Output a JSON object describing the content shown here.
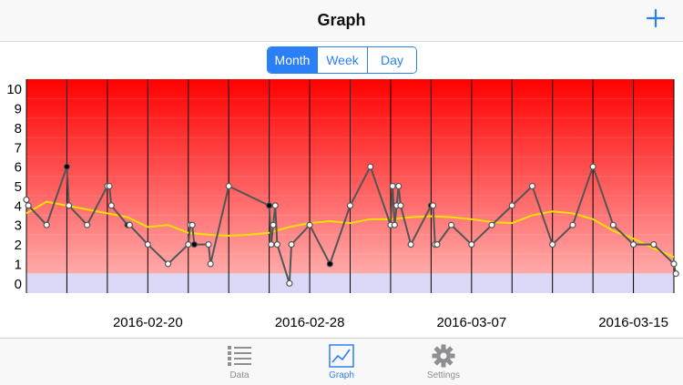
{
  "nav": {
    "title": "Graph"
  },
  "segments": {
    "month": "Month",
    "week": "Week",
    "day": "Day",
    "selected": "Month"
  },
  "tabs": {
    "data": "Data",
    "graph": "Graph",
    "settings": "Settings",
    "selected": "Graph"
  },
  "colors": {
    "accent": "#2a7ff7",
    "line": "#555555",
    "trend": "#f4e000",
    "band_low": "#d9d9f7",
    "band_top": "#ff0000",
    "band_bottom": "#ffaaaa"
  },
  "chart_data": {
    "type": "line",
    "title": "",
    "xlabel": "",
    "ylabel": "",
    "ylim": [
      0,
      10
    ],
    "yticks": [
      0,
      1,
      2,
      3,
      4,
      5,
      6,
      7,
      8,
      9,
      10
    ],
    "xlim": [
      "2016-02-14",
      "2016-03-17"
    ],
    "xticks": [
      "2016-02-20",
      "2016-02-28",
      "2016-03-07",
      "2016-03-15"
    ],
    "week_lines": [
      "2016-02-14",
      "2016-02-16",
      "2016-02-18",
      "2016-02-20",
      "2016-02-22",
      "2016-02-24",
      "2016-02-26",
      "2016-02-28",
      "2016-03-01",
      "2016-03-03",
      "2016-03-05",
      "2016-03-07",
      "2016-03-09",
      "2016-03-11",
      "2016-03-13",
      "2016-03-15",
      "2016-03-17"
    ],
    "series": [
      {
        "points": [
          {
            "x": "2016-02-14",
            "y": 4.3
          },
          {
            "x": "2016-02-14",
            "y": 4.0
          },
          {
            "x": "2016-02-15",
            "y": 3.0
          },
          {
            "x": "2016-02-16",
            "y": 6.0,
            "filled": true
          },
          {
            "x": "2016-02-16",
            "y": 4.0
          },
          {
            "x": "2016-02-17",
            "y": 3.0
          },
          {
            "x": "2016-02-18",
            "y": 5.0
          },
          {
            "x": "2016-02-18",
            "y": 5.0
          },
          {
            "x": "2016-02-18",
            "y": 4.0
          },
          {
            "x": "2016-02-19",
            "y": 3.0,
            "filled": true
          },
          {
            "x": "2016-02-19",
            "y": 3.0
          },
          {
            "x": "2016-02-20",
            "y": 2.0
          },
          {
            "x": "2016-02-21",
            "y": 1.0
          },
          {
            "x": "2016-02-22",
            "y": 2.0
          },
          {
            "x": "2016-02-22",
            "y": 3.0
          },
          {
            "x": "2016-02-22",
            "y": 3.0
          },
          {
            "x": "2016-02-22",
            "y": 2.0,
            "filled": true
          },
          {
            "x": "2016-02-23",
            "y": 2.0
          },
          {
            "x": "2016-02-23",
            "y": 1.0
          },
          {
            "x": "2016-02-24",
            "y": 5.0
          },
          {
            "x": "2016-02-26",
            "y": 4.0,
            "filled": true
          },
          {
            "x": "2016-02-26",
            "y": 2.0
          },
          {
            "x": "2016-02-26",
            "y": 3.0
          },
          {
            "x": "2016-02-26",
            "y": 4.0
          },
          {
            "x": "2016-02-26",
            "y": 2.0
          },
          {
            "x": "2016-02-27",
            "y": 0.0
          },
          {
            "x": "2016-02-27",
            "y": 2.0
          },
          {
            "x": "2016-02-28",
            "y": 3.0
          },
          {
            "x": "2016-02-29",
            "y": 1.0,
            "filled": true
          },
          {
            "x": "2016-03-01",
            "y": 4.0
          },
          {
            "x": "2016-03-02",
            "y": 6.0
          },
          {
            "x": "2016-03-03",
            "y": 3.0
          },
          {
            "x": "2016-03-03",
            "y": 5.0
          },
          {
            "x": "2016-03-03",
            "y": 3.0
          },
          {
            "x": "2016-03-03",
            "y": 4.0
          },
          {
            "x": "2016-03-03",
            "y": 5.0
          },
          {
            "x": "2016-03-03",
            "y": 4.0
          },
          {
            "x": "2016-03-04",
            "y": 2.0
          },
          {
            "x": "2016-03-05",
            "y": 4.0,
            "filled": true
          },
          {
            "x": "2016-03-05",
            "y": 4.0
          },
          {
            "x": "2016-03-05",
            "y": 2.0
          },
          {
            "x": "2016-03-05",
            "y": 2.0
          },
          {
            "x": "2016-03-06",
            "y": 3.0
          },
          {
            "x": "2016-03-07",
            "y": 2.0
          },
          {
            "x": "2016-03-08",
            "y": 3.0
          },
          {
            "x": "2016-03-09",
            "y": 4.0
          },
          {
            "x": "2016-03-10",
            "y": 5.0
          },
          {
            "x": "2016-03-11",
            "y": 2.0
          },
          {
            "x": "2016-03-12",
            "y": 3.0
          },
          {
            "x": "2016-03-13",
            "y": 6.0
          },
          {
            "x": "2016-03-14",
            "y": 3.0
          },
          {
            "x": "2016-03-15",
            "y": 2.0
          },
          {
            "x": "2016-03-16",
            "y": 2.0
          },
          {
            "x": "2016-03-17",
            "y": 1.0
          },
          {
            "x": "2016-03-17",
            "y": 0.5
          }
        ]
      },
      {
        "kind": "moving_average",
        "points": [
          {
            "x": "2016-02-14",
            "y": 3.6
          },
          {
            "x": "2016-02-15",
            "y": 4.2
          },
          {
            "x": "2016-02-16",
            "y": 4.0
          },
          {
            "x": "2016-02-17",
            "y": 3.8
          },
          {
            "x": "2016-02-18",
            "y": 3.6
          },
          {
            "x": "2016-02-19",
            "y": 3.4
          },
          {
            "x": "2016-02-20",
            "y": 2.9
          },
          {
            "x": "2016-02-21",
            "y": 3.0
          },
          {
            "x": "2016-02-22",
            "y": 2.6
          },
          {
            "x": "2016-02-23",
            "y": 2.5
          },
          {
            "x": "2016-02-24",
            "y": 2.45
          },
          {
            "x": "2016-02-25",
            "y": 2.5
          },
          {
            "x": "2016-02-26",
            "y": 2.6
          },
          {
            "x": "2016-02-27",
            "y": 2.9
          },
          {
            "x": "2016-02-28",
            "y": 3.1
          },
          {
            "x": "2016-02-29",
            "y": 3.2
          },
          {
            "x": "2016-03-01",
            "y": 3.1
          },
          {
            "x": "2016-03-02",
            "y": 3.3
          },
          {
            "x": "2016-03-03",
            "y": 3.3
          },
          {
            "x": "2016-03-04",
            "y": 3.4
          },
          {
            "x": "2016-03-05",
            "y": 3.45
          },
          {
            "x": "2016-03-06",
            "y": 3.4
          },
          {
            "x": "2016-03-07",
            "y": 3.3
          },
          {
            "x": "2016-03-08",
            "y": 3.15
          },
          {
            "x": "2016-03-09",
            "y": 3.1
          },
          {
            "x": "2016-03-10",
            "y": 3.5
          },
          {
            "x": "2016-03-11",
            "y": 3.7
          },
          {
            "x": "2016-03-12",
            "y": 3.6
          },
          {
            "x": "2016-03-13",
            "y": 3.3
          },
          {
            "x": "2016-03-14",
            "y": 2.7
          },
          {
            "x": "2016-03-15",
            "y": 2.3
          },
          {
            "x": "2016-03-16",
            "y": 1.8
          },
          {
            "x": "2016-03-17",
            "y": 1.35
          }
        ]
      }
    ]
  }
}
